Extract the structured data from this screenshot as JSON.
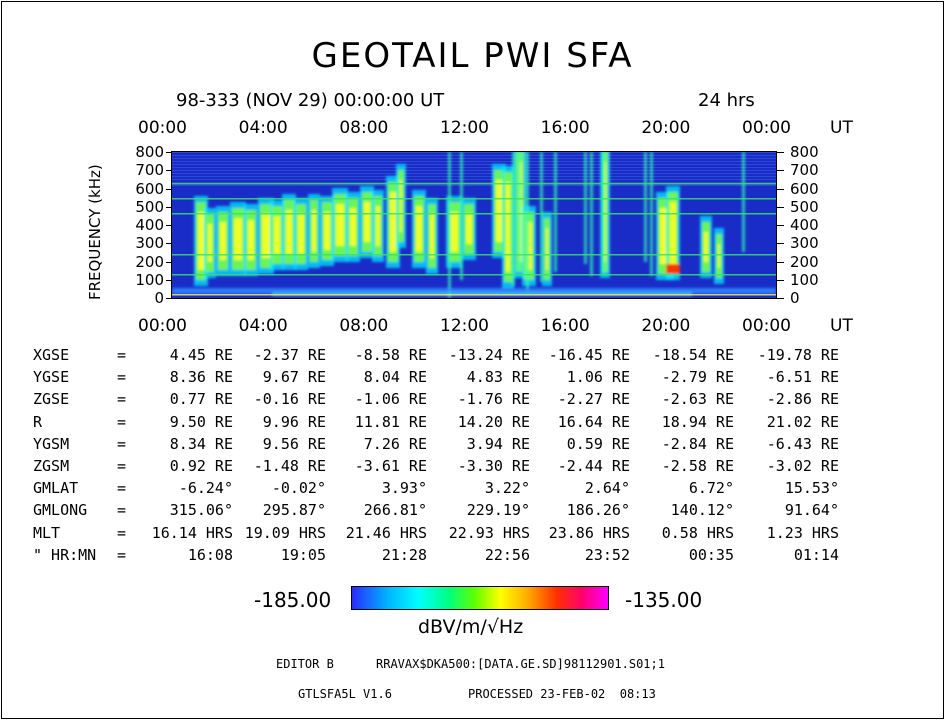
{
  "header": {
    "title": "GEOTAIL PWI SFA",
    "date_line": "98-333 (NOV 29) 00:00:00 UT",
    "duration": "24 hrs"
  },
  "chart_data": {
    "type": "heatmap",
    "x_unit": "UT",
    "x_ticks": [
      "00:00",
      "04:00",
      "08:00",
      "12:00",
      "16:00",
      "20:00",
      "00:00"
    ],
    "x_range_hours": [
      0,
      24
    ],
    "y_label": "FREQUENCY (kHz)",
    "y_ticks": [
      800,
      700,
      600,
      500,
      400,
      300,
      200,
      100,
      0
    ],
    "y_range": [
      0,
      800
    ],
    "colorbar": {
      "min": "-185.00",
      "max": "-135.00",
      "unit": "dBV/m/√Hz"
    }
  },
  "ephemeris": {
    "rows": [
      {
        "label": "XGSE",
        "eq": "=",
        "values": [
          "4.45 RE",
          "-2.37 RE",
          "-8.58 RE",
          "-13.24 RE",
          "-16.45 RE",
          "-18.54 RE",
          "-19.78 RE"
        ]
      },
      {
        "label": "YGSE",
        "eq": "=",
        "values": [
          "8.36 RE",
          "9.67 RE",
          "8.04 RE",
          "4.83 RE",
          "1.06 RE",
          "-2.79 RE",
          "-6.51 RE"
        ]
      },
      {
        "label": "ZGSE",
        "eq": "=",
        "values": [
          "0.77 RE",
          "-0.16 RE",
          "-1.06 RE",
          "-1.76 RE",
          "-2.27 RE",
          "-2.63 RE",
          "-2.86 RE"
        ]
      },
      {
        "label": "R",
        "eq": "=",
        "values": [
          "9.50 RE",
          "9.96 RE",
          "11.81 RE",
          "14.20 RE",
          "16.64 RE",
          "18.94 RE",
          "21.02 RE"
        ]
      },
      {
        "label": "YGSM",
        "eq": "=",
        "values": [
          "8.34 RE",
          "9.56 RE",
          "7.26 RE",
          "3.94 RE",
          "0.59 RE",
          "-2.84 RE",
          "-6.43 RE"
        ]
      },
      {
        "label": "ZGSM",
        "eq": "=",
        "values": [
          "0.92 RE",
          "-1.48 RE",
          "-3.61 RE",
          "-3.30 RE",
          "-2.44 RE",
          "-2.58 RE",
          "-3.02 RE"
        ]
      },
      {
        "label": "GMLAT",
        "eq": "=",
        "values": [
          "-6.24°",
          "-0.02°",
          "3.93°",
          "3.22°",
          "2.64°",
          "6.72°",
          "15.53°"
        ]
      },
      {
        "label": "GMLONG",
        "eq": "=",
        "values": [
          "315.06°",
          "295.87°",
          "266.81°",
          "229.19°",
          "186.26°",
          "140.12°",
          "91.64°"
        ]
      },
      {
        "label": "MLT",
        "eq": "=",
        "values": [
          "16.14 HRS",
          "19.09 HRS",
          "21.46 HRS",
          "22.93 HRS",
          "23.86 HRS",
          "0.58 HRS",
          "1.23 HRS"
        ]
      },
      {
        "label": "\" HR:MN",
        "eq": "=",
        "values": [
          "16:08",
          "19:05",
          "21:28",
          "22:56",
          "23:52",
          "00:35",
          "01:14"
        ]
      }
    ]
  },
  "footer": {
    "editor": "EDITOR B",
    "file": "RRAVAX$DKA500:[DATA.GE.SD]98112901.S01;1",
    "program": "GTLSFA5L V1.6",
    "processed": "PROCESSED 23-FEB-02  08:13"
  },
  "colors": {
    "background_blue": "#1a2cc8",
    "line_green": "#39e06a"
  }
}
